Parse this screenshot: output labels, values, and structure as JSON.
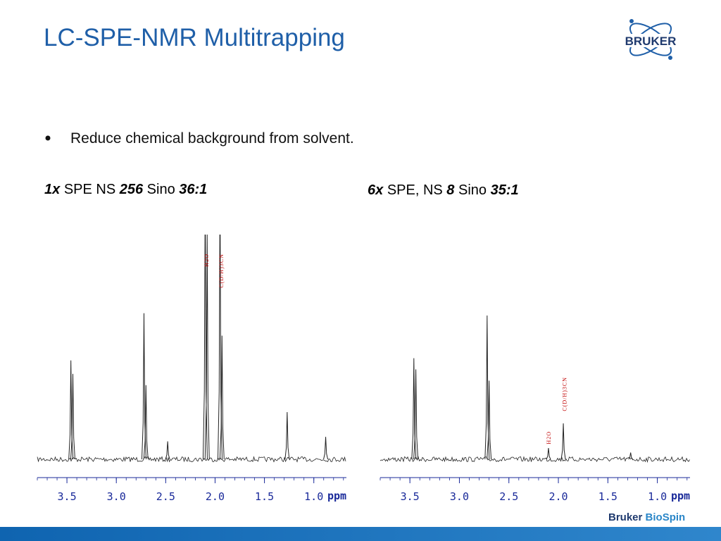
{
  "header": {
    "title": "LC-SPE-NMR Multitrapping",
    "logo": "BRUKER"
  },
  "bullets": [
    "Reduce chemical background from solvent."
  ],
  "captions": [
    [
      "1x",
      "SPE NS",
      "256",
      "Sino",
      "36:1"
    ],
    [
      "6x",
      "SPE, NS",
      "8",
      "Sino",
      "35:1"
    ]
  ],
  "footer": [
    "Bruker",
    "BioSpin"
  ],
  "chart_data": [
    {
      "type": "spectrum",
      "x_label": "ppm",
      "xlim": [
        3.8,
        0.67
      ],
      "ylim": [
        0,
        100
      ],
      "xticks": [
        3.5,
        {
          "value": 3,
          "label": "3.0"
        },
        2.5,
        {
          "value": 2,
          "label": "2.0"
        },
        1.5,
        {
          "value": 1,
          "label": "1.0"
        }
      ],
      "x": [
        3.46,
        3.44,
        2.72,
        2.7,
        2.48,
        2.1,
        2.08,
        1.95,
        1.93,
        1.27,
        0.88
      ],
      "values": [
        44,
        38,
        65,
        33,
        8,
        120,
        100,
        120,
        55,
        21,
        10
      ],
      "annotations": [
        {
          "text": "H2O",
          "x": 2.09
        },
        {
          "text": "C(D/H)3CN",
          "x": 1.94
        }
      ]
    },
    {
      "type": "spectrum",
      "x_label": "ppm",
      "xlim": [
        3.8,
        0.67
      ],
      "ylim": [
        0,
        100
      ],
      "xticks": [
        3.5,
        {
          "value": 3,
          "label": "3.0"
        },
        2.5,
        {
          "value": 2,
          "label": "2.0"
        },
        1.5,
        {
          "value": 1,
          "label": "1.0"
        }
      ],
      "x": [
        3.46,
        3.44,
        2.72,
        2.7,
        2.1,
        1.95,
        1.27
      ],
      "values": [
        45,
        40,
        64,
        35,
        5,
        16,
        3
      ],
      "annotations": [
        {
          "text": "H2O",
          "x": 2.1
        },
        {
          "text": "C(D/H)3CN",
          "x": 1.94
        }
      ]
    }
  ]
}
